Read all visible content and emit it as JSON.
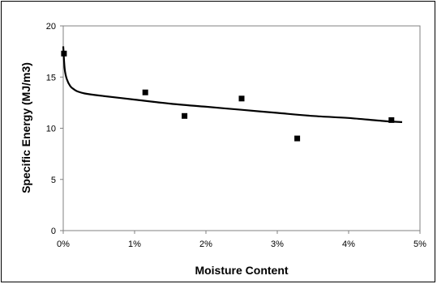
{
  "chart_data": {
    "type": "scatter",
    "title": "",
    "xlabel": "Moisture Content",
    "ylabel": "Specific Energy (MJ/m3)",
    "xlim": [
      0,
      0.05
    ],
    "ylim": [
      0,
      20
    ],
    "x_ticks": [
      0,
      0.01,
      0.02,
      0.03,
      0.04,
      0.05
    ],
    "x_tick_labels": [
      "0%",
      "1%",
      "2%",
      "3%",
      "4%",
      "5%"
    ],
    "y_ticks": [
      0,
      5,
      10,
      15,
      20
    ],
    "y_tick_labels": [
      "0",
      "5",
      "10",
      "15",
      "20"
    ],
    "grid": false,
    "legend": "none",
    "series": [
      {
        "type": "scatter",
        "marker": "square",
        "color": "#000000",
        "x": [
          0.0001,
          0.0115,
          0.017,
          0.025,
          0.0328,
          0.046
        ],
        "y": [
          17.3,
          13.5,
          11.2,
          12.9,
          9.0,
          10.8
        ]
      },
      {
        "type": "line",
        "color": "#000000",
        "x": [
          0.0,
          0.0002,
          0.0005,
          0.001,
          0.0015,
          0.002,
          0.003,
          0.005,
          0.01,
          0.015,
          0.02,
          0.025,
          0.03,
          0.035,
          0.04,
          0.045,
          0.0475
        ],
        "y": [
          18.0,
          15.8,
          14.8,
          14.1,
          13.8,
          13.6,
          13.4,
          13.2,
          12.8,
          12.4,
          12.1,
          11.8,
          11.5,
          11.2,
          11.0,
          10.7,
          10.6
        ]
      }
    ]
  }
}
